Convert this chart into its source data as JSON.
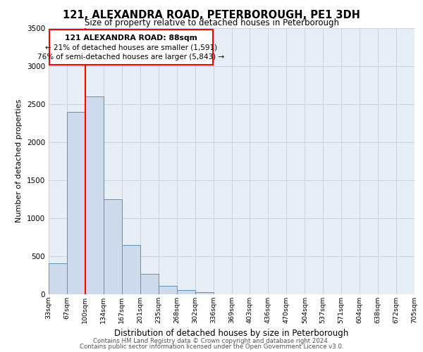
{
  "title": "121, ALEXANDRA ROAD, PETERBOROUGH, PE1 3DH",
  "subtitle": "Size of property relative to detached houses in Peterborough",
  "xlabel": "Distribution of detached houses by size in Peterborough",
  "ylabel": "Number of detached properties",
  "bins": [
    "33sqm",
    "67sqm",
    "100sqm",
    "134sqm",
    "167sqm",
    "201sqm",
    "235sqm",
    "268sqm",
    "302sqm",
    "336sqm",
    "369sqm",
    "403sqm",
    "436sqm",
    "470sqm",
    "504sqm",
    "537sqm",
    "571sqm",
    "604sqm",
    "638sqm",
    "672sqm",
    "705sqm"
  ],
  "bar_values": [
    400,
    2400,
    2600,
    1250,
    640,
    260,
    105,
    50,
    20,
    0,
    0,
    0,
    0,
    0,
    0,
    0,
    0,
    0,
    0,
    0
  ],
  "bar_color": "#cddaeb",
  "bar_edge_color": "#6090b8",
  "grid_color": "#c8d4e4",
  "background_color": "#e8eef6",
  "red_line_bin_index": 2,
  "annotation_line1": "121 ALEXANDRA ROAD: 88sqm",
  "annotation_line2": "← 21% of detached houses are smaller (1,591)",
  "annotation_line3": "76% of semi-detached houses are larger (5,843) →",
  "ylim": [
    0,
    3500
  ],
  "yticks": [
    0,
    500,
    1000,
    1500,
    2000,
    2500,
    3000,
    3500
  ],
  "footer_line1": "Contains HM Land Registry data © Crown copyright and database right 2024.",
  "footer_line2": "Contains public sector information licensed under the Open Government Licence v3.0."
}
